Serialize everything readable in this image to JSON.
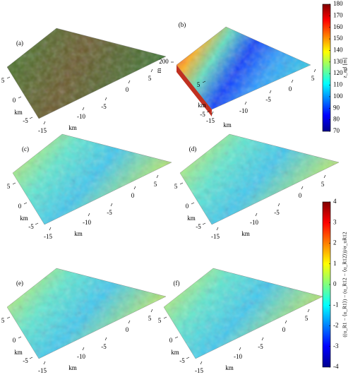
{
  "panels": [
    {
      "label": "(a)",
      "xticks": [
        -15,
        -10,
        -5,
        0,
        5
      ],
      "xlabel": "km",
      "yticks": [
        5,
        0,
        -5
      ],
      "ylabel": "km"
    },
    {
      "label": "(b)",
      "xticks": [
        -15,
        -10,
        -5,
        0,
        5
      ],
      "xlabel": "km",
      "yticks": [
        5,
        -5
      ],
      "ylabel": "km",
      "zticks": [
        200
      ],
      "zlabel": "m"
    },
    {
      "label": "(c)",
      "xticks": [
        -15,
        -10,
        -5,
        0,
        5
      ],
      "xlabel": "km",
      "yticks": [
        5,
        0,
        -5
      ],
      "ylabel": "km"
    },
    {
      "label": "(d)",
      "xticks": [
        -15,
        -10,
        -5,
        0,
        5
      ],
      "xlabel": "km",
      "yticks": [
        5,
        0,
        -5
      ],
      "ylabel": "km"
    },
    {
      "label": "(e)",
      "xticks": [
        -15,
        -10,
        -5,
        0,
        5
      ],
      "xlabel": "km",
      "yticks": [
        5,
        0,
        -5
      ],
      "ylabel": "km"
    },
    {
      "label": "(f)",
      "xticks": [
        -15,
        -10,
        -5,
        0,
        5
      ],
      "xlabel": "km",
      "yticks": [
        5,
        0,
        -5
      ],
      "ylabel": "km"
    }
  ],
  "colorbars": [
    {
      "label": "z_agl [m]",
      "lim": [
        70,
        180
      ],
      "ticks": [
        180,
        170,
        160,
        150,
        140,
        130,
        120,
        110,
        100,
        90,
        80,
        70
      ]
    },
    {
      "label": "((u_R1 − ⟨u_R1⟩) − (u_R12 − ⟨u_R12⟩))/σ_uR12",
      "lim": [
        -4,
        4
      ],
      "ticks": [
        4,
        3,
        2,
        1,
        0,
        -1,
        -2,
        -3,
        -4
      ]
    }
  ]
}
